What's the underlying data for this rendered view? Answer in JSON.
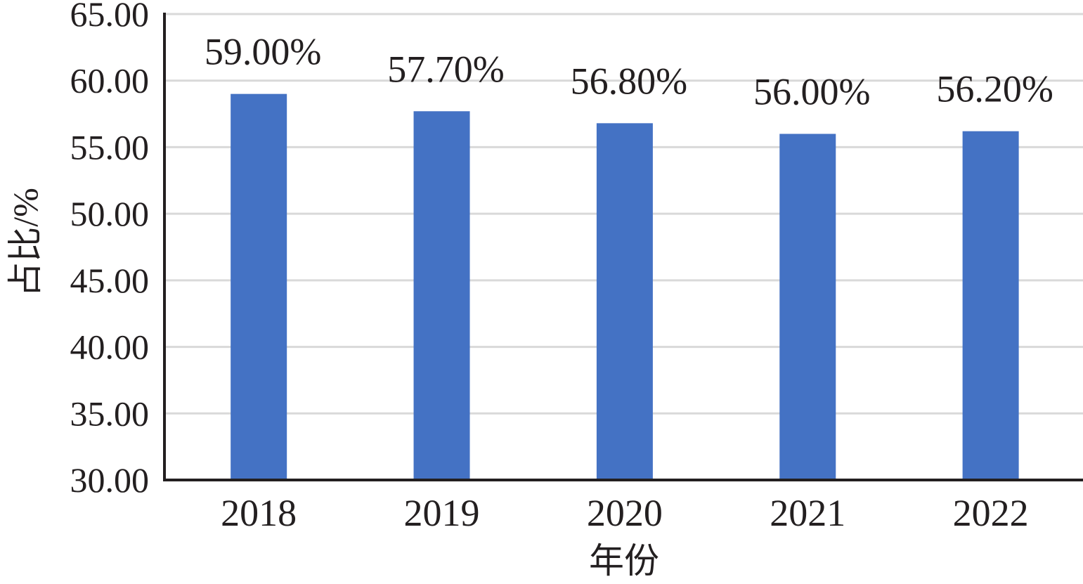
{
  "chart_data": {
    "type": "bar",
    "title": "",
    "xlabel": "年份",
    "ylabel": "占比/%",
    "categories": [
      "2018",
      "2019",
      "2020",
      "2021",
      "2022"
    ],
    "values": [
      59.0,
      57.7,
      56.8,
      56.0,
      56.2
    ],
    "data_labels": [
      "59.00%",
      "57.70%",
      "56.80%",
      "56.00%",
      "56.20%"
    ],
    "ylim": [
      30,
      65
    ],
    "yticks": [
      30,
      35,
      40,
      45,
      50,
      55,
      60,
      65
    ],
    "ytick_labels": [
      "30.00",
      "35.00",
      "40.00",
      "45.00",
      "50.00",
      "55.00",
      "60.00",
      "65.00"
    ],
    "grid": true,
    "legend": "none",
    "colors": {
      "bar": "#4472c4",
      "grid": "#d9d9d9",
      "axis": "#231f20"
    }
  }
}
